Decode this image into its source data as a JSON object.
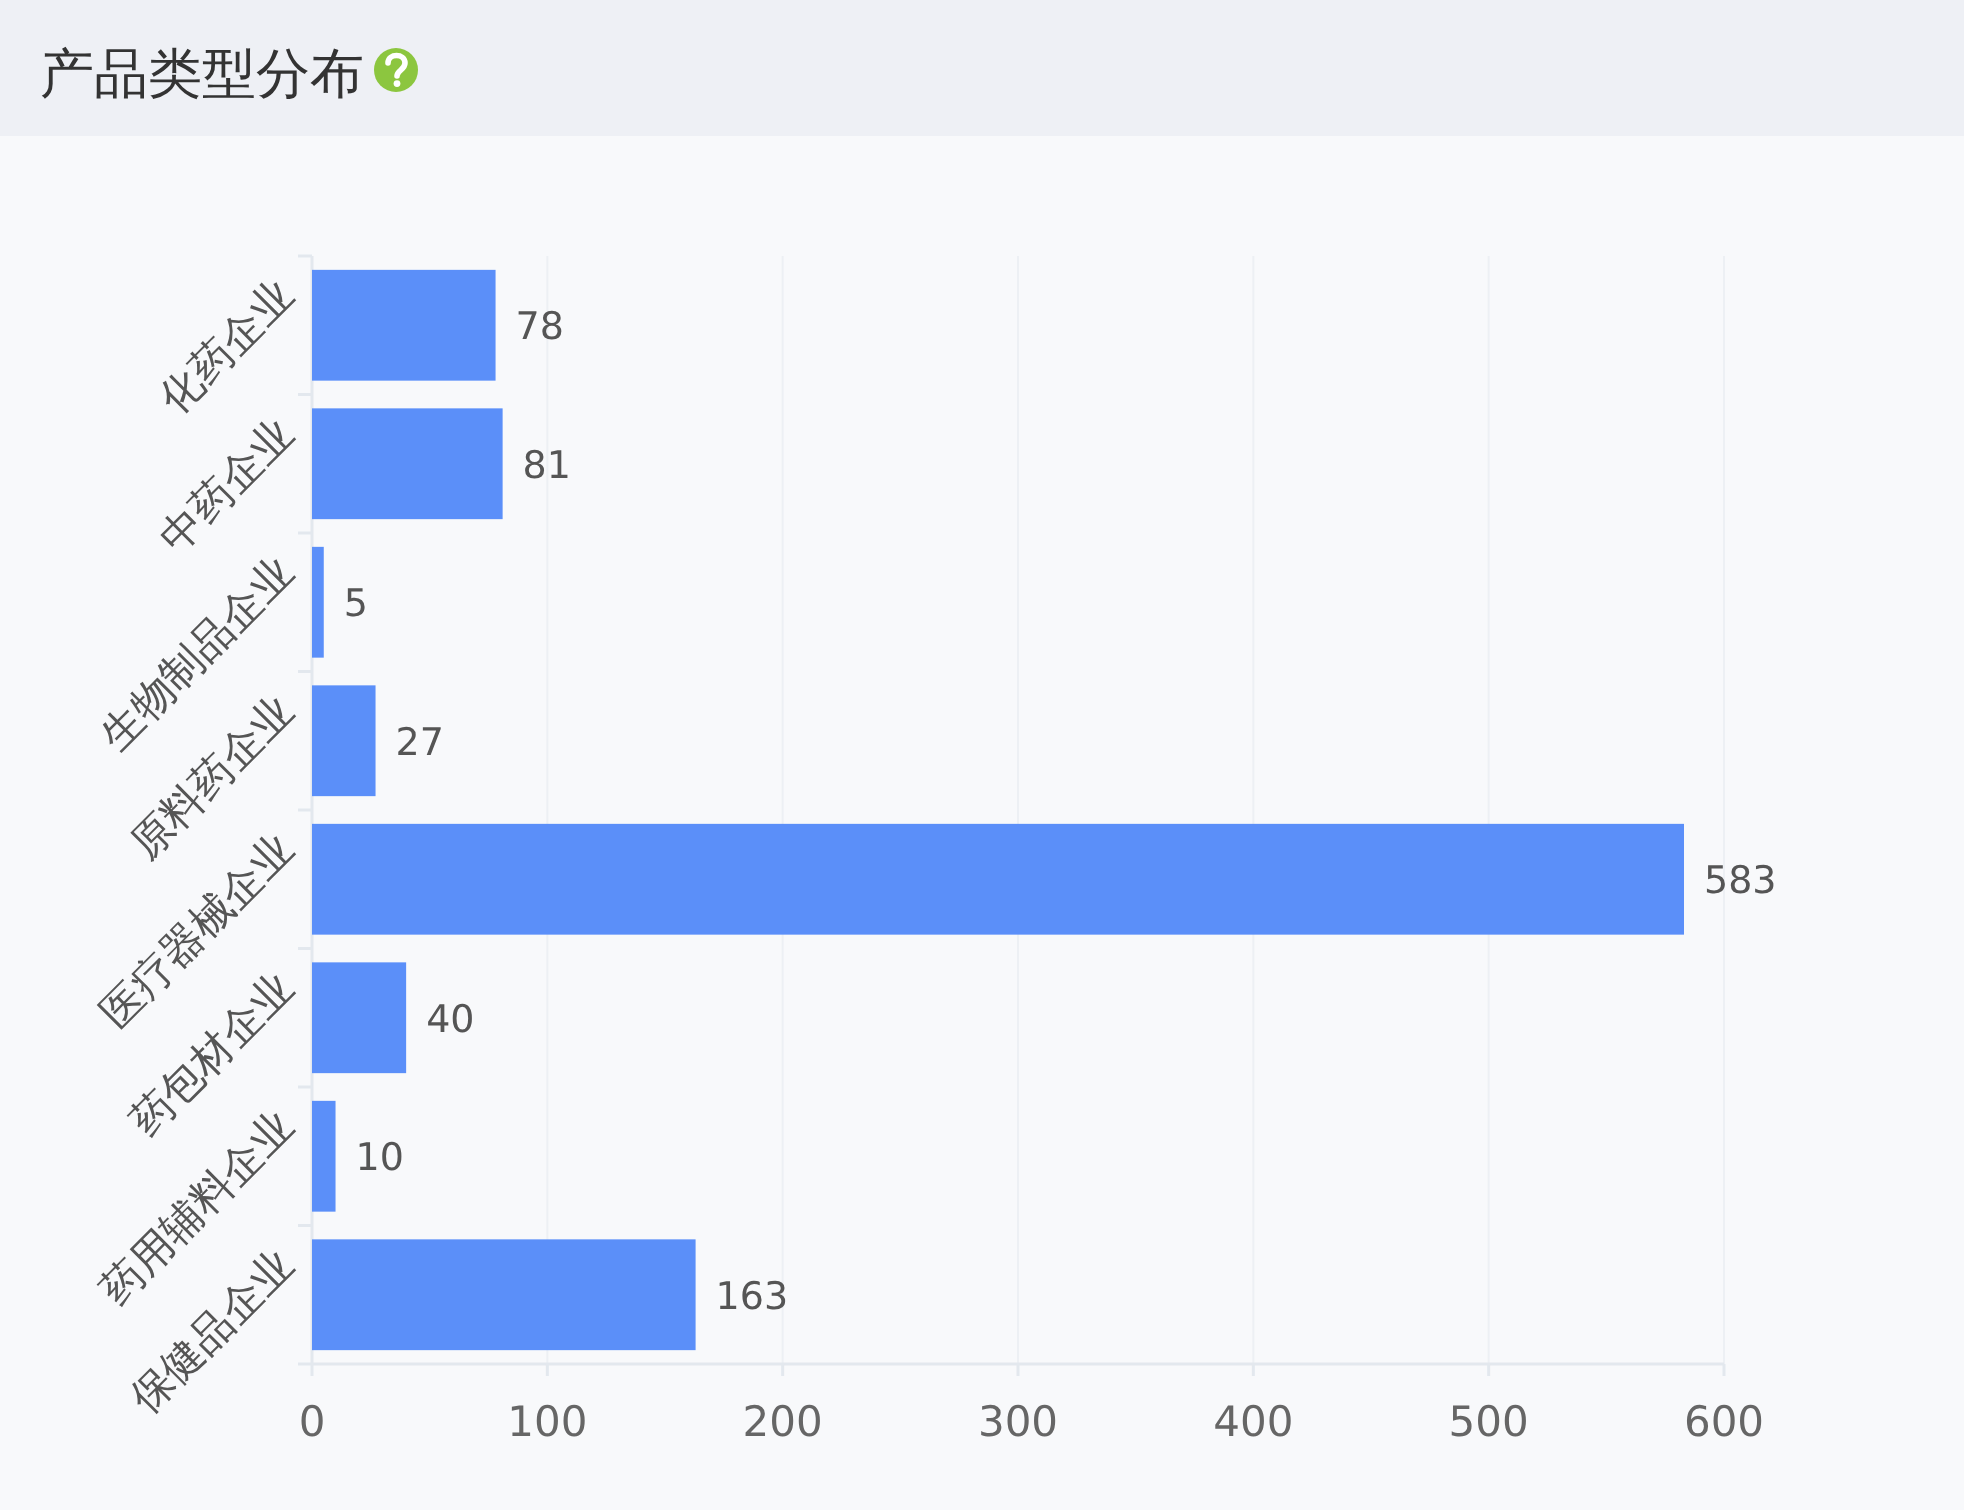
{
  "chart_data": {
    "type": "bar",
    "orientation": "horizontal",
    "title": "产品类型分布",
    "categories": [
      "化药企业",
      "中药企业",
      "生物制品企业",
      "原料药企业",
      "医疗器械企业",
      "药包材企业",
      "药用辅料企业",
      "保健品企业"
    ],
    "values": [
      78,
      81,
      5,
      27,
      583,
      40,
      10,
      163
    ],
    "color": "#5b8ff9",
    "xlim": [
      0,
      600
    ],
    "xticks": [
      0,
      100,
      200,
      300,
      400,
      500,
      600
    ],
    "grid": "x",
    "data_labels": true
  }
}
